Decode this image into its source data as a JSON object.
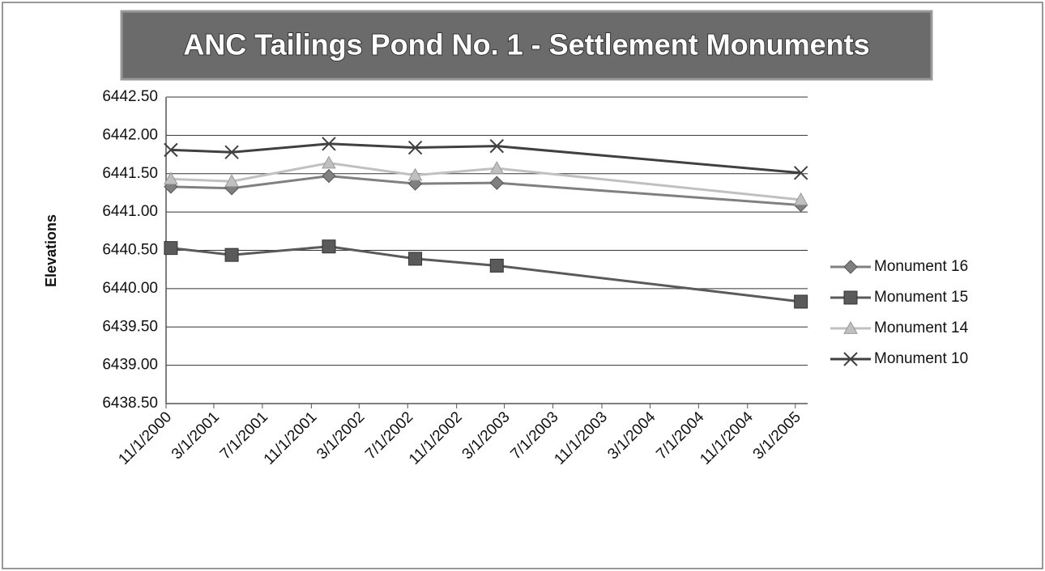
{
  "chart_data": {
    "type": "line",
    "title": "ANC Tailings Pond No. 1 - Settlement Monuments",
    "y_label": "Elevations",
    "x": [
      "11/13/2000",
      "4/15/2001",
      "12/15/2001",
      "7/20/2002",
      "2/10/2003",
      "3/15/2005"
    ],
    "series": [
      {
        "name": "Monument 16",
        "color": "#808080",
        "marker": "diamond",
        "values": [
          6441.33,
          6441.31,
          6441.47,
          6441.37,
          6441.38,
          6441.09
        ]
      },
      {
        "name": "Monument 15",
        "color": "#5a5a5a",
        "marker": "square",
        "values": [
          6440.53,
          6440.44,
          6440.55,
          6440.39,
          6440.3,
          6439.83
        ]
      },
      {
        "name": "Monument 14",
        "color": "#c0c0c0",
        "marker": "triangle",
        "values": [
          6441.43,
          6441.4,
          6441.64,
          6441.48,
          6441.57,
          6441.16
        ]
      },
      {
        "name": "Monument 10",
        "color": "#404040",
        "marker": "x",
        "values": [
          6441.81,
          6441.78,
          6441.89,
          6441.84,
          6441.86,
          6441.51
        ]
      }
    ],
    "xlim": [
      "11/1/2000",
      "4/1/2005"
    ],
    "xticks": [
      "11/1/2000",
      "3/1/2001",
      "7/1/2001",
      "11/1/2001",
      "3/1/2002",
      "7/1/2002",
      "11/1/2002",
      "3/1/2003",
      "7/1/2003",
      "11/1/2003",
      "3/1/2004",
      "7/1/2004",
      "11/1/2004",
      "3/1/2005"
    ],
    "ylim": [
      6438.5,
      6442.5
    ],
    "yticks": [
      {
        "value": 6438.5,
        "label": "6438.50"
      },
      {
        "value": 6439,
        "label": "6439.00"
      },
      {
        "value": 6439.5,
        "label": "6439.50"
      },
      {
        "value": 6440,
        "label": "6440.00"
      },
      {
        "value": 6440.5,
        "label": "6440.50"
      },
      {
        "value": 6441,
        "label": "6441.00"
      },
      {
        "value": 6441.5,
        "label": "6441.50"
      },
      {
        "value": 6442,
        "label": "6442.00"
      },
      {
        "value": 6442.5,
        "label": "6442.50"
      }
    ],
    "grid": true,
    "legend": "right"
  }
}
